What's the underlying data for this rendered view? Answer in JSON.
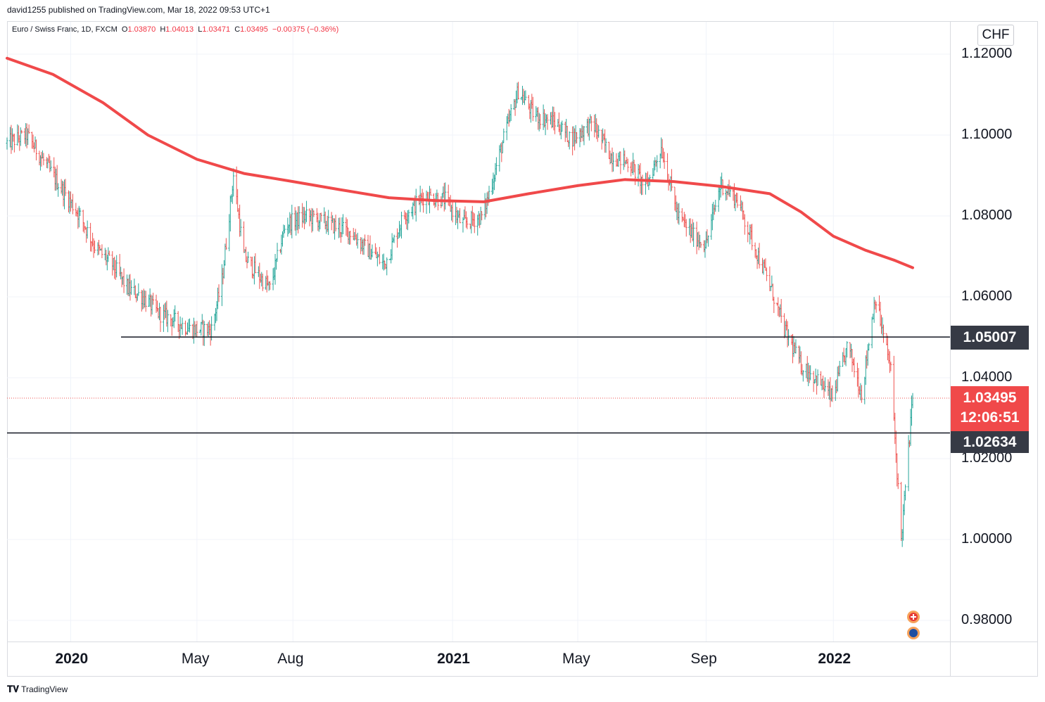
{
  "header": {
    "published": "david1255 published on TradingView.com, Mar 18, 2022 09:53 UTC+1",
    "symbol": "Euro / Swiss Franc, 1D, FXCM",
    "o_label": "O",
    "o_value": "1.03870",
    "h_label": "H",
    "h_value": "1.04013",
    "l_label": "L",
    "l_value": "1.03471",
    "c_label": "C",
    "c_value": "1.03495",
    "change": "−0.00375 (−0.36%)"
  },
  "axis": {
    "currency": "CHF",
    "y_ticks": [
      "1.12000",
      "1.10000",
      "1.08000",
      "1.06000",
      "1.04000",
      "1.02000",
      "1.00000",
      "0.98000"
    ],
    "x_ticks": [
      {
        "label": "2020",
        "bold": true
      },
      {
        "label": "May",
        "bold": false
      },
      {
        "label": "Aug",
        "bold": false
      },
      {
        "label": "2021",
        "bold": true
      },
      {
        "label": "May",
        "bold": false
      },
      {
        "label": "Sep",
        "bold": false
      },
      {
        "label": "2022",
        "bold": true
      }
    ]
  },
  "badges": {
    "upper_level": "1.05007",
    "last_price": "1.03495",
    "countdown": "12:06:51",
    "lower_level": "1.02634"
  },
  "footer": {
    "brand": "TradingView"
  },
  "colors": {
    "up": "#26a69a",
    "down": "#ef5350",
    "ma": "#f0494a",
    "level_badge": "#363a45",
    "price_badge": "#f0494a"
  },
  "chart_data": {
    "type": "ohlc",
    "symbol": "EURCHF",
    "timeframe": "1D",
    "ylim": [
      0.975,
      1.125
    ],
    "y_scale": "linear",
    "grid": true,
    "last": {
      "open": 1.0387,
      "high": 1.04013,
      "low": 1.03471,
      "close": 1.03495
    },
    "horizontal_levels": [
      1.05007,
      1.02634
    ],
    "price_path": [
      {
        "date": "2019-11-01",
        "close": 1.098
      },
      {
        "date": "2019-11-20",
        "close": 1.1
      },
      {
        "date": "2019-12-05",
        "close": 1.094
      },
      {
        "date": "2019-12-20",
        "close": 1.088
      },
      {
        "date": "2020-01-10",
        "close": 1.08
      },
      {
        "date": "2020-01-25",
        "close": 1.072
      },
      {
        "date": "2020-02-10",
        "close": 1.068
      },
      {
        "date": "2020-02-25",
        "close": 1.062
      },
      {
        "date": "2020-03-10",
        "close": 1.06
      },
      {
        "date": "2020-03-25",
        "close": 1.056
      },
      {
        "date": "2020-04-10",
        "close": 1.054
      },
      {
        "date": "2020-04-25",
        "close": 1.052
      },
      {
        "date": "2020-05-15",
        "close": 1.052
      },
      {
        "date": "2020-05-25",
        "close": 1.064
      },
      {
        "date": "2020-06-05",
        "close": 1.09
      },
      {
        "date": "2020-06-15",
        "close": 1.07
      },
      {
        "date": "2020-06-30",
        "close": 1.065
      },
      {
        "date": "2020-07-10",
        "close": 1.062
      },
      {
        "date": "2020-07-25",
        "close": 1.078
      },
      {
        "date": "2020-08-15",
        "close": 1.08
      },
      {
        "date": "2020-09-05",
        "close": 1.078
      },
      {
        "date": "2020-09-25",
        "close": 1.076
      },
      {
        "date": "2020-10-10",
        "close": 1.072
      },
      {
        "date": "2020-10-28",
        "close": 1.068
      },
      {
        "date": "2020-11-15",
        "close": 1.08
      },
      {
        "date": "2020-12-05",
        "close": 1.085
      },
      {
        "date": "2020-12-25",
        "close": 1.084
      },
      {
        "date": "2021-01-10",
        "close": 1.078
      },
      {
        "date": "2021-01-30",
        "close": 1.08
      },
      {
        "date": "2021-02-20",
        "close": 1.1
      },
      {
        "date": "2021-03-05",
        "close": 1.111
      },
      {
        "date": "2021-03-20",
        "close": 1.105
      },
      {
        "date": "2021-04-10",
        "close": 1.103
      },
      {
        "date": "2021-04-25",
        "close": 1.099
      },
      {
        "date": "2021-05-15",
        "close": 1.103
      },
      {
        "date": "2021-06-01",
        "close": 1.095
      },
      {
        "date": "2021-06-20",
        "close": 1.093
      },
      {
        "date": "2021-07-05",
        "close": 1.087
      },
      {
        "date": "2021-07-20",
        "close": 1.097
      },
      {
        "date": "2021-08-05",
        "close": 1.08
      },
      {
        "date": "2021-08-20",
        "close": 1.075
      },
      {
        "date": "2021-09-01",
        "close": 1.073
      },
      {
        "date": "2021-09-15",
        "close": 1.088
      },
      {
        "date": "2021-10-01",
        "close": 1.084
      },
      {
        "date": "2021-10-15",
        "close": 1.074
      },
      {
        "date": "2021-11-01",
        "close": 1.063
      },
      {
        "date": "2021-11-15",
        "close": 1.052
      },
      {
        "date": "2021-12-01",
        "close": 1.043
      },
      {
        "date": "2021-12-15",
        "close": 1.04
      },
      {
        "date": "2021-12-31",
        "close": 1.035
      },
      {
        "date": "2022-01-15",
        "close": 1.048
      },
      {
        "date": "2022-01-28",
        "close": 1.036
      },
      {
        "date": "2022-02-10",
        "close": 1.06
      },
      {
        "date": "2022-02-25",
        "close": 1.042
      },
      {
        "date": "2022-03-07",
        "close": 1.0
      },
      {
        "date": "2022-03-18",
        "close": 1.03495
      }
    ],
    "moving_average": [
      {
        "date": "2019-11-01",
        "value": 1.119
      },
      {
        "date": "2019-12-15",
        "value": 1.115
      },
      {
        "date": "2020-02-01",
        "value": 1.108
      },
      {
        "date": "2020-03-15",
        "value": 1.1
      },
      {
        "date": "2020-05-01",
        "value": 1.094
      },
      {
        "date": "2020-06-15",
        "value": 1.0905
      },
      {
        "date": "2020-08-01",
        "value": 1.0885
      },
      {
        "date": "2020-09-15",
        "value": 1.0865
      },
      {
        "date": "2020-11-01",
        "value": 1.0845
      },
      {
        "date": "2020-12-15",
        "value": 1.0838
      },
      {
        "date": "2021-01-31",
        "value": 1.0835
      },
      {
        "date": "2021-03-15",
        "value": 1.0855
      },
      {
        "date": "2021-05-01",
        "value": 1.0875
      },
      {
        "date": "2021-06-15",
        "value": 1.089
      },
      {
        "date": "2021-08-01",
        "value": 1.0885
      },
      {
        "date": "2021-09-15",
        "value": 1.0873
      },
      {
        "date": "2021-11-01",
        "value": 1.0855
      },
      {
        "date": "2021-12-01",
        "value": 1.081
      },
      {
        "date": "2022-01-01",
        "value": 1.075
      },
      {
        "date": "2022-02-01",
        "value": 1.0715
      },
      {
        "date": "2022-03-01",
        "value": 1.069
      },
      {
        "date": "2022-03-18",
        "value": 1.0672
      }
    ]
  }
}
